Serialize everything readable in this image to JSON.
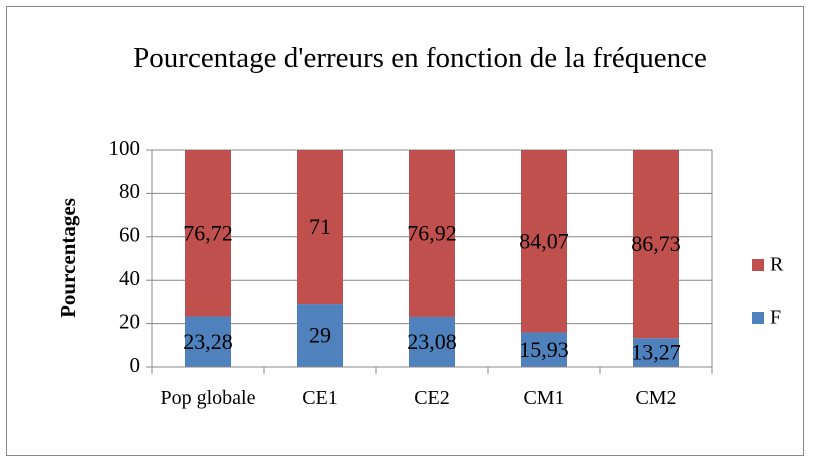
{
  "chart_data": {
    "type": "stacked_bar",
    "title": "Pourcentage d'erreurs en fonction de la fréquence",
    "y_label": "Pourcentages",
    "categories": [
      "Pop globale",
      "CE1",
      "CE2",
      "CM1",
      "CM2"
    ],
    "series": [
      {
        "name": "F",
        "color": "#4f81bd",
        "values": [
          23.28,
          29,
          23.08,
          15.93,
          13.27
        ],
        "value_labels": [
          "23,28",
          "29",
          "23,08",
          "15,93",
          "13,27"
        ]
      },
      {
        "name": "R",
        "color": "#c0504d",
        "values": [
          76.72,
          71,
          76.92,
          84.07,
          86.73
        ],
        "value_labels": [
          "76,72",
          "71",
          "76,92",
          "84,07",
          "86,73"
        ]
      }
    ],
    "ylim": [
      0,
      100
    ],
    "yticks": [
      0,
      20,
      40,
      60,
      80,
      100
    ],
    "grid": true,
    "legend": "right"
  }
}
